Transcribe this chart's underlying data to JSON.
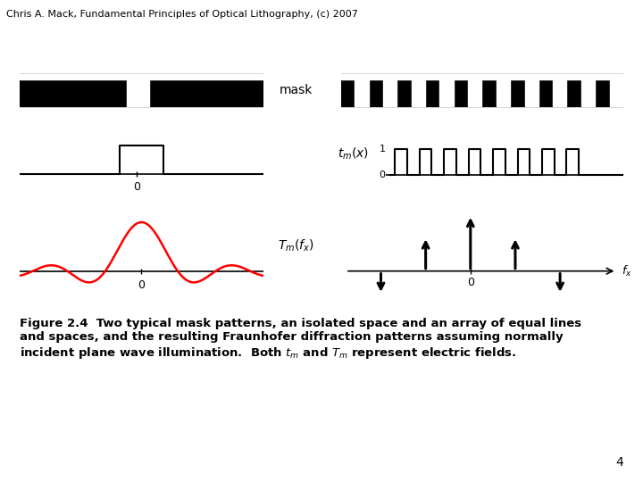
{
  "header": "Chris A. Mack, Fundamental Principles of Optical Lithography, (c) 2007",
  "background_color": "#ffffff",
  "header_fontsize": 8,
  "caption_fontsize": 9.5,
  "page_number": "4",
  "mask_label": "mask",
  "tm_label": "$t_m(x)$",
  "Tm_label": "$T_m(f_x)$",
  "fx_label": "$f_x$",
  "label_1": "1",
  "label_0": "0",
  "caption_line1": "Figure 2.4  Two typical mask patterns, an isolated space and an array of equal lines",
  "caption_line2": "and spaces, and the resulting Fraunhofer diffraction patterns assuming normally",
  "caption_line3": "incident plane wave illumination.  Both $t_m$ and $T_m$ represent electric fields."
}
